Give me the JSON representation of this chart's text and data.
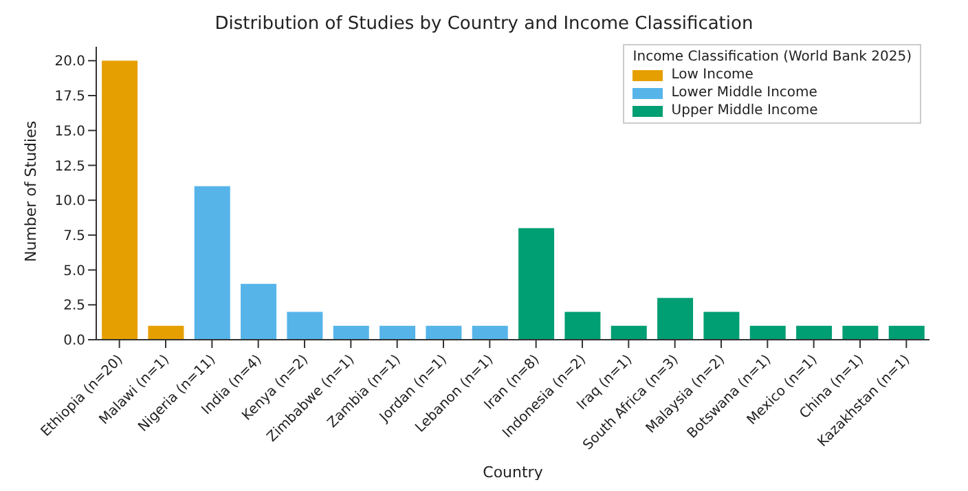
{
  "chart_data": {
    "type": "bar",
    "title": "Distribution of Studies by Country and Income Classification",
    "xlabel": "Country",
    "ylabel": "Number of Studies",
    "legend_title": "Income Classification (World Bank 2025)",
    "legend": "top right",
    "stacked": true,
    "categories": [
      "Ethiopia (n=20)",
      "Malawi (n=1)",
      "Nigeria (n=11)",
      "India (n=4)",
      "Kenya (n=2)",
      "Zimbabwe (n=1)",
      "Zambia (n=1)",
      "Jordan (n=1)",
      "Lebanon (n=1)",
      "Iran (n=8)",
      "Indonesia (n=2)",
      "Iraq (n=1)",
      "South Africa (n=3)",
      "Malaysia (n=2)",
      "Botswana (n=1)",
      "Mexico (n=1)",
      "China (n=1)",
      "Kazakhstan (n=1)"
    ],
    "series": [
      {
        "name": "Low Income",
        "color": "#e69f00",
        "values": [
          20,
          1,
          null,
          null,
          null,
          null,
          null,
          null,
          null,
          null,
          null,
          null,
          null,
          null,
          null,
          null,
          null,
          null
        ]
      },
      {
        "name": "Lower Middle Income",
        "color": "#56b4e9",
        "values": [
          null,
          null,
          11,
          4,
          2,
          1,
          1,
          1,
          1,
          null,
          null,
          null,
          null,
          null,
          null,
          null,
          null,
          null
        ]
      },
      {
        "name": "Upper Middle Income",
        "color": "#009e73",
        "values": [
          null,
          null,
          null,
          null,
          null,
          null,
          null,
          null,
          null,
          8,
          2,
          1,
          3,
          2,
          1,
          1,
          1,
          1
        ]
      }
    ],
    "ylim": [
      0,
      21
    ],
    "yticks": [
      {
        "value": 0,
        "label": "0.0"
      },
      {
        "value": 2.5,
        "label": "2.5"
      },
      {
        "value": 5,
        "label": "5.0"
      },
      {
        "value": 7.5,
        "label": "7.5"
      },
      {
        "value": 10,
        "label": "10.0"
      },
      {
        "value": 12.5,
        "label": "12.5"
      },
      {
        "value": 15,
        "label": "15.0"
      },
      {
        "value": 17.5,
        "label": "17.5"
      },
      {
        "value": 20,
        "label": "20.0"
      }
    ]
  }
}
